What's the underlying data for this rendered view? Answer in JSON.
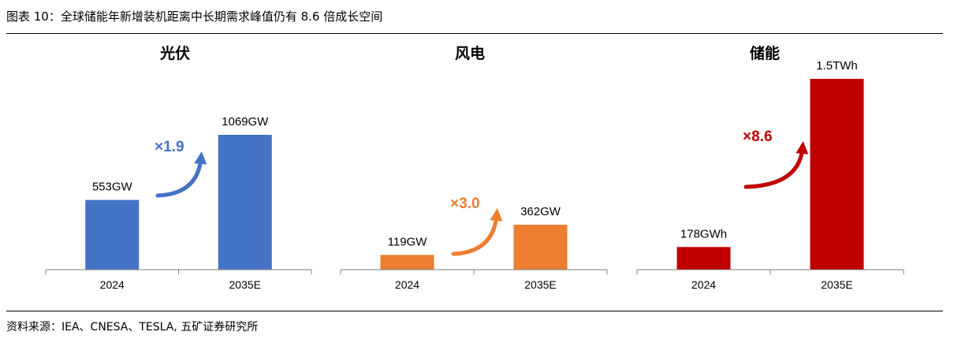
{
  "figure": {
    "title": "图表 10：全球储能年新增装机距离中长期需求峰值仍有 8.6 倍成长空间",
    "source": "资料来源：IEA、CNESA、TESLA, 五矿证券研究所"
  },
  "chart_data": [
    {
      "type": "bar",
      "title": "光伏",
      "categories": [
        "2024",
        "2035E"
      ],
      "values": [
        553,
        1069
      ],
      "unit": "GW",
      "data_labels": [
        "553GW",
        "1069GW"
      ],
      "growth_label": "×1.9",
      "color": "#4472C4"
    },
    {
      "type": "bar",
      "title": "风电",
      "categories": [
        "2024",
        "2035E"
      ],
      "values": [
        119,
        362
      ],
      "unit": "GW",
      "data_labels": [
        "119GW",
        "362GW"
      ],
      "growth_label": "×3.0",
      "color": "#ED7D31"
    },
    {
      "type": "bar",
      "title": "储能",
      "categories": [
        "2024",
        "2035E"
      ],
      "values": [
        178,
        1500
      ],
      "unit": "GWh",
      "data_labels": [
        "178GWh",
        "1.5TWh"
      ],
      "growth_label": "×8.6",
      "color": "#C00000"
    }
  ]
}
